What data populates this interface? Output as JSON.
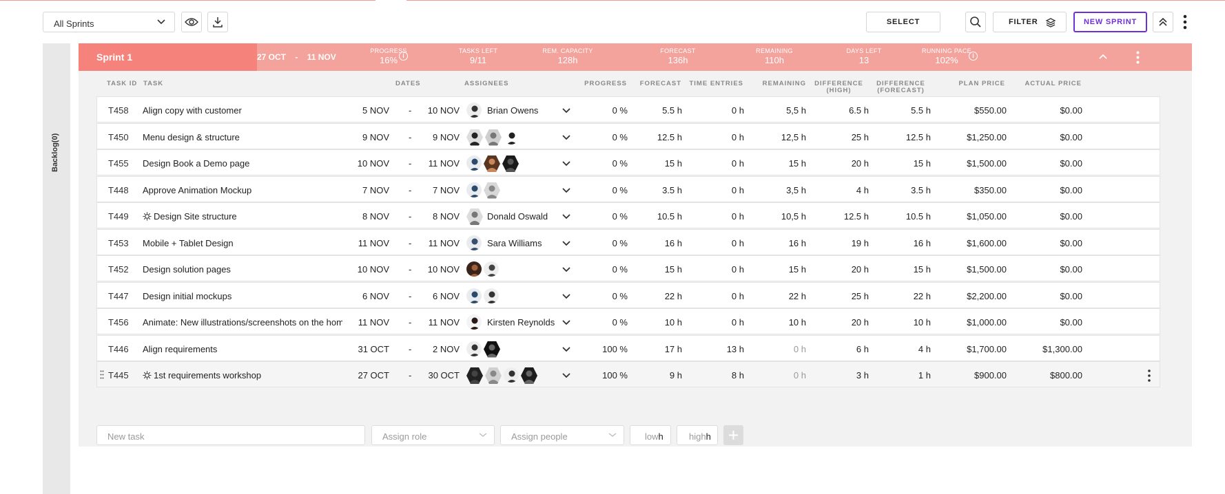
{
  "toolbar": {
    "sprint_filter": "All Sprints",
    "select_label": "SELECT",
    "filter_label": "FILTER",
    "new_sprint_label": "NEW SPRINT"
  },
  "backlog": {
    "label": "Backlog(0)"
  },
  "sprint": {
    "name": "Sprint 1",
    "start": "27 OCT",
    "dash": "-",
    "end": "11 NOV",
    "stats": [
      {
        "label": "PROGRESS",
        "value": "16%",
        "info": true
      },
      {
        "label": "TASKS LEFT",
        "value": "9/11"
      },
      {
        "label": "REM. CAPACITY",
        "value": "128h"
      },
      {
        "label": "FORECAST",
        "value": "136h"
      },
      {
        "label": "REMAINING",
        "value": "110h"
      },
      {
        "label": "DAYS LEFT",
        "value": "13"
      },
      {
        "label": "RUNNING PACE",
        "value": "102%",
        "info": true
      }
    ],
    "progress_fraction": 0.16
  },
  "columns": {
    "task_id": "TASK ID",
    "task": "TASK",
    "dates": "DATES",
    "assignees": "ASSIGNEES",
    "progress": "PROGRESS",
    "forecast": "FORECAST",
    "time_entries": "TIME ENTRIES",
    "remaining": "REMAINING",
    "diff_high": "DIFFERENCE\n(HIGH)",
    "diff_high_1": "DIFFERENCE",
    "diff_high_2": "(HIGH)",
    "diff_fc_1": "DIFFERENCE",
    "diff_fc_2": "(FORECAST)",
    "plan_price": "PLAN PRICE",
    "actual_price": "ACTUAL PRICE"
  },
  "tasks": [
    {
      "id": "T458",
      "name": "Align copy with customer",
      "start": "5 NOV",
      "end": "10 NOV",
      "assignee_name": "Brian Owens",
      "progress": "0 %",
      "forecast": "5.5 h",
      "time_entries": "0 h",
      "remaining": "5,5 h",
      "diff_high": "6.5 h",
      "diff_forecast": "5.5 h",
      "plan_price": "$550.00",
      "actual_price": "$0.00"
    },
    {
      "id": "T450",
      "name": "Menu design & structure",
      "start": "9 NOV",
      "end": "9 NOV",
      "assignee_name": "",
      "progress": "0 %",
      "forecast": "12.5 h",
      "time_entries": "0 h",
      "remaining": "12,5 h",
      "diff_high": "25 h",
      "diff_forecast": "12.5 h",
      "plan_price": "$1,250.00",
      "actual_price": "$0.00"
    },
    {
      "id": "T455",
      "name": "Design Book a Demo page",
      "start": "10 NOV",
      "end": "11 NOV",
      "assignee_name": "",
      "progress": "0 %",
      "forecast": "15 h",
      "time_entries": "0 h",
      "remaining": "15 h",
      "diff_high": "20 h",
      "diff_forecast": "15 h",
      "plan_price": "$1,500.00",
      "actual_price": "$0.00"
    },
    {
      "id": "T448",
      "name": "Approve Animation Mockup",
      "start": "7 NOV",
      "end": "7 NOV",
      "assignee_name": "",
      "progress": "0 %",
      "forecast": "3.5 h",
      "time_entries": "0 h",
      "remaining": "3,5 h",
      "diff_high": "4 h",
      "diff_forecast": "3.5 h",
      "plan_price": "$350.00",
      "actual_price": "$0.00"
    },
    {
      "id": "T449",
      "name": "Design Site structure",
      "start": "8 NOV",
      "end": "8 NOV",
      "assignee_name": "Donald Oswald",
      "progress": "0 %",
      "forecast": "10.5 h",
      "time_entries": "0 h",
      "remaining": "10,5 h",
      "diff_high": "12.5 h",
      "diff_forecast": "10.5 h",
      "plan_price": "$1,050.00",
      "actual_price": "$0.00"
    },
    {
      "id": "T453",
      "name": "Mobile + Tablet Design",
      "start": "11 NOV",
      "end": "11 NOV",
      "assignee_name": "Sara Williams",
      "progress": "0 %",
      "forecast": "16 h",
      "time_entries": "0 h",
      "remaining": "16 h",
      "diff_high": "19 h",
      "diff_forecast": "16 h",
      "plan_price": "$1,600.00",
      "actual_price": "$0.00"
    },
    {
      "id": "T452",
      "name": "Design solution pages",
      "start": "10 NOV",
      "end": "10 NOV",
      "assignee_name": "",
      "progress": "0 %",
      "forecast": "15 h",
      "time_entries": "0 h",
      "remaining": "15 h",
      "diff_high": "20 h",
      "diff_forecast": "15 h",
      "plan_price": "$1,500.00",
      "actual_price": "$0.00"
    },
    {
      "id": "T447",
      "name": "Design initial mockups",
      "start": "6 NOV",
      "end": "6 NOV",
      "assignee_name": "",
      "progress": "0 %",
      "forecast": "22 h",
      "time_entries": "0 h",
      "remaining": "22 h",
      "diff_high": "25 h",
      "diff_forecast": "22 h",
      "plan_price": "$2,200.00",
      "actual_price": "$0.00"
    },
    {
      "id": "T456",
      "name": "Animate: New illustrations/screenshots on the hom...",
      "start": "11 NOV",
      "end": "11 NOV",
      "assignee_name": "Kirsten Reynolds",
      "progress": "0 %",
      "forecast": "10 h",
      "time_entries": "0 h",
      "remaining": "10 h",
      "diff_high": "20 h",
      "diff_forecast": "10 h",
      "plan_price": "$1,000.00",
      "actual_price": "$0.00"
    },
    {
      "id": "T446",
      "name": "Align requirements",
      "start": "31 OCT",
      "end": "2 NOV",
      "assignee_name": "",
      "progress": "100 %",
      "forecast": "17 h",
      "time_entries": "13 h",
      "remaining": "0 h",
      "diff_high": "6 h",
      "diff_forecast": "4 h",
      "plan_price": "$1,700.00",
      "actual_price": "$1,300.00"
    },
    {
      "id": "T445",
      "name": "1st requirements workshop",
      "start": "27 OCT",
      "end": "30 OCT",
      "assignee_name": "",
      "progress": "100 %",
      "forecast": "9 h",
      "time_entries": "8 h",
      "remaining": "0 h",
      "diff_high": "3 h",
      "diff_forecast": "1 h",
      "plan_price": "$900.00",
      "actual_price": "$800.00"
    }
  ],
  "new_task": {
    "task_placeholder": "New task",
    "role_placeholder": "Assign role",
    "people_placeholder": "Assign people",
    "low_placeholder": "low",
    "high_placeholder": "high",
    "unit": "h"
  },
  "colors": {
    "accent": "#6e30d6",
    "sprint_header": "#f4a29c",
    "sprint_progress": "#f5837b"
  }
}
